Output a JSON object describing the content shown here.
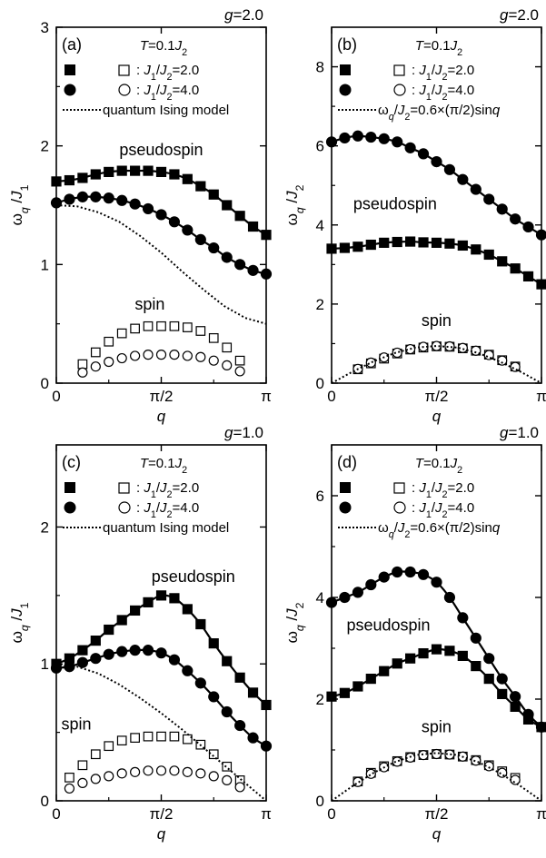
{
  "chart_data": [
    {
      "panel_label": "(a)",
      "g_label": "g=2.0",
      "temp_label": "T=0.1J2",
      "type": "scatter",
      "xlabel": "q",
      "ylabel": "ω_q/J_1",
      "xlim": [
        0,
        3.1416
      ],
      "ylim": [
        0,
        3
      ],
      "xticks": [
        {
          "v": 0,
          "t": "0"
        },
        {
          "v": 1.5708,
          "t": "π/2"
        },
        {
          "v": 3.1416,
          "t": "π"
        }
      ],
      "yticks": [
        {
          "v": 0,
          "t": "0"
        },
        {
          "v": 1,
          "t": "1"
        },
        {
          "v": 2,
          "t": "2"
        },
        {
          "v": 3,
          "t": "3"
        }
      ],
      "legend": [
        {
          "marker": "square",
          "text": ": J1/J2=2.0"
        },
        {
          "marker": "circle",
          "text": ": J1/J2=4.0"
        },
        {
          "marker": "dotted",
          "text": "quantum Ising model"
        }
      ],
      "annotations": [
        {
          "text": "pseudospin",
          "x": 1.57,
          "y": 1.92
        },
        {
          "text": "spin",
          "x": 1.4,
          "y": 0.62
        }
      ],
      "series": [
        {
          "marker": "square",
          "filled": true,
          "line": true,
          "x": [
            0,
            0.196,
            0.393,
            0.589,
            0.785,
            0.982,
            1.178,
            1.374,
            1.571,
            1.767,
            1.963,
            2.16,
            2.356,
            2.553,
            2.749,
            2.945,
            3.1416
          ],
          "y": [
            1.7,
            1.71,
            1.73,
            1.76,
            1.78,
            1.79,
            1.79,
            1.79,
            1.78,
            1.76,
            1.72,
            1.66,
            1.59,
            1.5,
            1.41,
            1.32,
            1.25
          ]
        },
        {
          "marker": "circle",
          "filled": true,
          "line": true,
          "x": [
            0,
            0.196,
            0.393,
            0.589,
            0.785,
            0.982,
            1.178,
            1.374,
            1.571,
            1.767,
            1.963,
            2.16,
            2.356,
            2.553,
            2.749,
            2.945,
            3.1416
          ],
          "y": [
            1.52,
            1.55,
            1.57,
            1.57,
            1.56,
            1.54,
            1.51,
            1.47,
            1.42,
            1.36,
            1.29,
            1.21,
            1.14,
            1.06,
            1.0,
            0.95,
            0.92
          ]
        },
        {
          "marker": "square",
          "filled": false,
          "line": false,
          "x": [
            0.393,
            0.589,
            0.785,
            0.982,
            1.178,
            1.374,
            1.571,
            1.767,
            1.963,
            2.16,
            2.356,
            2.553,
            2.749
          ],
          "y": [
            0.16,
            0.26,
            0.35,
            0.42,
            0.46,
            0.48,
            0.48,
            0.48,
            0.47,
            0.44,
            0.38,
            0.3,
            0.19
          ]
        },
        {
          "marker": "circle",
          "filled": false,
          "line": false,
          "x": [
            0.393,
            0.589,
            0.785,
            0.982,
            1.178,
            1.374,
            1.571,
            1.767,
            1.963,
            2.16,
            2.356,
            2.553,
            2.749
          ],
          "y": [
            0.09,
            0.14,
            0.18,
            0.21,
            0.23,
            0.24,
            0.24,
            0.24,
            0.23,
            0.22,
            0.19,
            0.15,
            0.1
          ]
        },
        {
          "marker": "none",
          "dotted": true,
          "x": [
            0,
            0.314,
            0.628,
            0.942,
            1.257,
            1.571,
            1.885,
            2.199,
            2.513,
            2.827,
            3.1416
          ],
          "y": [
            1.5,
            1.49,
            1.44,
            1.36,
            1.24,
            1.1,
            0.94,
            0.79,
            0.65,
            0.55,
            0.5
          ]
        }
      ]
    },
    {
      "panel_label": "(b)",
      "g_label": "g=2.0",
      "temp_label": "T=0.1J2",
      "type": "scatter",
      "xlabel": "q",
      "ylabel": "ω_q/J_2",
      "xlim": [
        0,
        3.1416
      ],
      "ylim": [
        0,
        9
      ],
      "xticks": [
        {
          "v": 0,
          "t": "0"
        },
        {
          "v": 1.5708,
          "t": "π/2"
        },
        {
          "v": 3.1416,
          "t": "π"
        }
      ],
      "yticks": [
        {
          "v": 0,
          "t": "0"
        },
        {
          "v": 2,
          "t": "2"
        },
        {
          "v": 4,
          "t": "4"
        },
        {
          "v": 6,
          "t": "6"
        },
        {
          "v": 8,
          "t": "8"
        }
      ],
      "legend": [
        {
          "marker": "square",
          "text": ": J1/J2=2.0"
        },
        {
          "marker": "circle",
          "text": ": J1/J2=4.0"
        },
        {
          "marker": "dotted",
          "text": "ωq/J2=0.6×(π/2)sinq"
        }
      ],
      "annotations": [
        {
          "text": "pseudospin",
          "x": 0.95,
          "y": 4.4
        },
        {
          "text": "spin",
          "x": 1.57,
          "y": 1.45
        }
      ],
      "series": [
        {
          "marker": "square",
          "filled": true,
          "line": true,
          "x": [
            0,
            0.196,
            0.393,
            0.589,
            0.785,
            0.982,
            1.178,
            1.374,
            1.571,
            1.767,
            1.963,
            2.16,
            2.356,
            2.553,
            2.749,
            2.945,
            3.1416
          ],
          "y": [
            3.4,
            3.42,
            3.45,
            3.5,
            3.55,
            3.57,
            3.58,
            3.56,
            3.55,
            3.53,
            3.48,
            3.38,
            3.25,
            3.08,
            2.9,
            2.7,
            2.5
          ]
        },
        {
          "marker": "circle",
          "filled": true,
          "line": true,
          "x": [
            0,
            0.196,
            0.393,
            0.589,
            0.785,
            0.982,
            1.178,
            1.374,
            1.571,
            1.767,
            1.963,
            2.16,
            2.356,
            2.553,
            2.749,
            2.945,
            3.1416
          ],
          "y": [
            6.1,
            6.2,
            6.25,
            6.22,
            6.18,
            6.1,
            5.95,
            5.8,
            5.6,
            5.4,
            5.15,
            4.9,
            4.65,
            4.4,
            4.15,
            3.95,
            3.75
          ]
        },
        {
          "marker": "square",
          "filled": false,
          "line": false,
          "x": [
            0.393,
            0.589,
            0.785,
            0.982,
            1.178,
            1.374,
            1.571,
            1.767,
            1.963,
            2.16,
            2.356,
            2.553,
            2.749
          ],
          "y": [
            0.35,
            0.5,
            0.62,
            0.75,
            0.85,
            0.9,
            0.93,
            0.92,
            0.88,
            0.82,
            0.72,
            0.58,
            0.42
          ]
        },
        {
          "marker": "circle",
          "filled": false,
          "line": false,
          "x": [
            0.393,
            0.589,
            0.785,
            0.982,
            1.178,
            1.374,
            1.571,
            1.767,
            1.963,
            2.16,
            2.356,
            2.553,
            2.749
          ],
          "y": [
            0.36,
            0.52,
            0.65,
            0.77,
            0.86,
            0.92,
            0.94,
            0.93,
            0.89,
            0.82,
            0.71,
            0.57,
            0.41
          ]
        },
        {
          "marker": "none",
          "dotted": true,
          "x": [
            0,
            0.314,
            0.628,
            0.942,
            1.257,
            1.571,
            1.885,
            2.199,
            2.513,
            2.827,
            3.1416
          ],
          "y": [
            0,
            0.29,
            0.55,
            0.76,
            0.9,
            0.94,
            0.9,
            0.76,
            0.55,
            0.29,
            0
          ]
        }
      ]
    },
    {
      "panel_label": "(c)",
      "g_label": "g=1.0",
      "temp_label": "T=0.1J2",
      "type": "scatter",
      "xlabel": "q",
      "ylabel": "ω_q/J_1",
      "xlim": [
        0,
        3.1416
      ],
      "ylim": [
        0,
        2.6
      ],
      "xticks": [
        {
          "v": 0,
          "t": "0"
        },
        {
          "v": 1.5708,
          "t": "π/2"
        },
        {
          "v": 3.1416,
          "t": "π"
        }
      ],
      "yticks": [
        {
          "v": 0,
          "t": "0"
        },
        {
          "v": 1,
          "t": "1"
        },
        {
          "v": 2,
          "t": "2"
        }
      ],
      "legend": [
        {
          "marker": "square",
          "text": ": J1/J2=2.0"
        },
        {
          "marker": "circle",
          "text": ": J1/J2=4.0"
        },
        {
          "marker": "dotted",
          "text": "quantum Ising model"
        }
      ],
      "annotations": [
        {
          "text": "pseudospin",
          "x": 2.05,
          "y": 1.6
        },
        {
          "text": "spin",
          "x": 0.3,
          "y": 0.52
        }
      ],
      "series": [
        {
          "marker": "square",
          "filled": true,
          "line": true,
          "x": [
            0,
            0.196,
            0.393,
            0.589,
            0.785,
            0.982,
            1.178,
            1.374,
            1.571,
            1.767,
            1.963,
            2.16,
            2.356,
            2.553,
            2.749,
            2.945,
            3.1416
          ],
          "y": [
            1.0,
            1.04,
            1.1,
            1.17,
            1.25,
            1.32,
            1.39,
            1.45,
            1.5,
            1.48,
            1.4,
            1.29,
            1.15,
            1.02,
            0.9,
            0.79,
            0.7
          ]
        },
        {
          "marker": "circle",
          "filled": true,
          "line": true,
          "x": [
            0,
            0.196,
            0.393,
            0.589,
            0.785,
            0.982,
            1.178,
            1.374,
            1.571,
            1.767,
            1.963,
            2.16,
            2.356,
            2.553,
            2.749,
            2.945,
            3.1416
          ],
          "y": [
            0.97,
            0.98,
            1.01,
            1.04,
            1.07,
            1.09,
            1.1,
            1.1,
            1.08,
            1.03,
            0.95,
            0.86,
            0.76,
            0.65,
            0.55,
            0.46,
            0.4
          ]
        },
        {
          "marker": "square",
          "filled": false,
          "line": false,
          "x": [
            0.196,
            0.393,
            0.589,
            0.785,
            0.982,
            1.178,
            1.374,
            1.571,
            1.767,
            1.963,
            2.16,
            2.356,
            2.553,
            2.749
          ],
          "y": [
            0.17,
            0.26,
            0.34,
            0.4,
            0.44,
            0.46,
            0.47,
            0.47,
            0.47,
            0.45,
            0.41,
            0.34,
            0.25,
            0.15
          ]
        },
        {
          "marker": "circle",
          "filled": false,
          "line": false,
          "x": [
            0.196,
            0.393,
            0.589,
            0.785,
            0.982,
            1.178,
            1.374,
            1.571,
            1.767,
            1.963,
            2.16,
            2.356,
            2.553,
            2.749
          ],
          "y": [
            0.09,
            0.13,
            0.16,
            0.18,
            0.2,
            0.21,
            0.22,
            0.22,
            0.22,
            0.21,
            0.2,
            0.18,
            0.15,
            0.1
          ]
        },
        {
          "marker": "none",
          "dotted": true,
          "x": [
            0,
            0.314,
            0.628,
            0.942,
            1.257,
            1.571,
            1.885,
            2.199,
            2.513,
            2.827,
            3.1416
          ],
          "y": [
            1.0,
            0.98,
            0.93,
            0.85,
            0.75,
            0.64,
            0.52,
            0.39,
            0.26,
            0.13,
            0
          ]
        }
      ]
    },
    {
      "panel_label": "(d)",
      "g_label": "g=1.0",
      "temp_label": "T=0.1J2",
      "type": "scatter",
      "xlabel": "q",
      "ylabel": "ω_q/J_2",
      "xlim": [
        0,
        3.1416
      ],
      "ylim": [
        0,
        7
      ],
      "xticks": [
        {
          "v": 0,
          "t": "0"
        },
        {
          "v": 1.5708,
          "t": "π/2"
        },
        {
          "v": 3.1416,
          "t": "π"
        }
      ],
      "yticks": [
        {
          "v": 0,
          "t": "0"
        },
        {
          "v": 2,
          "t": "2"
        },
        {
          "v": 4,
          "t": "4"
        },
        {
          "v": 6,
          "t": "6"
        }
      ],
      "legend": [
        {
          "marker": "square",
          "text": ": J1/J2=2.0"
        },
        {
          "marker": "circle",
          "text": ": J1/J2=4.0"
        },
        {
          "marker": "dotted",
          "text": "ωq/J2=0.6×(π/2)sinq"
        }
      ],
      "annotations": [
        {
          "text": "pseudospin",
          "x": 0.85,
          "y": 3.35
        },
        {
          "text": "spin",
          "x": 1.57,
          "y": 1.35
        }
      ],
      "series": [
        {
          "marker": "square",
          "filled": true,
          "line": true,
          "x": [
            0,
            0.196,
            0.393,
            0.589,
            0.785,
            0.982,
            1.178,
            1.374,
            1.571,
            1.767,
            1.963,
            2.16,
            2.356,
            2.553,
            2.749,
            2.945,
            3.1416
          ],
          "y": [
            2.05,
            2.12,
            2.25,
            2.4,
            2.55,
            2.7,
            2.8,
            2.9,
            2.98,
            2.95,
            2.85,
            2.65,
            2.4,
            2.1,
            1.85,
            1.6,
            1.45
          ]
        },
        {
          "marker": "circle",
          "filled": true,
          "line": true,
          "x": [
            0,
            0.196,
            0.393,
            0.589,
            0.785,
            0.982,
            1.178,
            1.374,
            1.571,
            1.767,
            1.963,
            2.16,
            2.356,
            2.553,
            2.749,
            2.945,
            3.1416
          ],
          "y": [
            3.9,
            4.0,
            4.1,
            4.25,
            4.4,
            4.5,
            4.5,
            4.45,
            4.3,
            4.0,
            3.6,
            3.2,
            2.8,
            2.4,
            2.05,
            1.7,
            1.45
          ]
        },
        {
          "marker": "square",
          "filled": false,
          "line": false,
          "x": [
            0.393,
            0.589,
            0.785,
            0.982,
            1.178,
            1.374,
            1.571,
            1.767,
            1.963,
            2.16,
            2.356,
            2.553,
            2.749
          ],
          "y": [
            0.38,
            0.55,
            0.68,
            0.78,
            0.86,
            0.9,
            0.92,
            0.91,
            0.87,
            0.8,
            0.7,
            0.58,
            0.45
          ]
        },
        {
          "marker": "circle",
          "filled": false,
          "line": false,
          "x": [
            0.393,
            0.589,
            0.785,
            0.982,
            1.178,
            1.374,
            1.571,
            1.767,
            1.963,
            2.16,
            2.356,
            2.553,
            2.749
          ],
          "y": [
            0.37,
            0.53,
            0.66,
            0.77,
            0.85,
            0.9,
            0.92,
            0.91,
            0.87,
            0.79,
            0.68,
            0.55,
            0.41
          ]
        },
        {
          "marker": "none",
          "dotted": true,
          "x": [
            0,
            0.314,
            0.628,
            0.942,
            1.257,
            1.571,
            1.885,
            2.199,
            2.513,
            2.827,
            3.1416
          ],
          "y": [
            0,
            0.29,
            0.55,
            0.76,
            0.9,
            0.94,
            0.9,
            0.76,
            0.55,
            0.29,
            0
          ]
        }
      ]
    }
  ]
}
